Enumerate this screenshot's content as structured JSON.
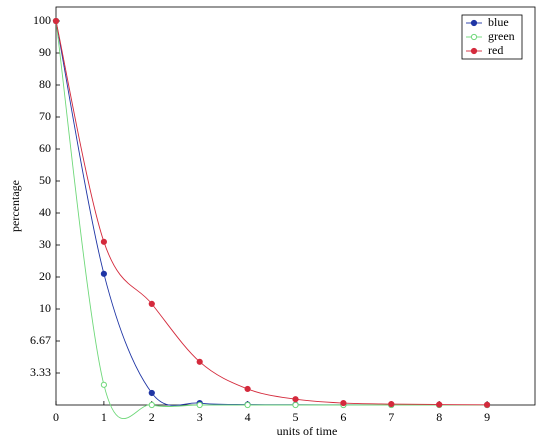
{
  "chart_data": {
    "type": "line",
    "x_label": "units of time",
    "y_label": "percentage",
    "x": [
      0,
      1,
      2,
      3,
      4,
      5,
      6,
      7,
      8,
      9
    ],
    "xlim": [
      0,
      10
    ],
    "xticks": [
      0,
      1,
      2,
      3,
      4,
      5,
      6,
      7,
      8,
      9
    ],
    "ylim": [
      0,
      104
    ],
    "yticks": [
      3.33,
      6.67,
      10,
      20,
      30,
      40,
      50,
      60,
      70,
      80,
      90,
      100
    ],
    "legend": "top-right",
    "series": [
      {
        "name": "blue",
        "color": "#1f35a5",
        "marker": "filled",
        "values": [
          100,
          21,
          1.25,
          0.2,
          0.05,
          0.03,
          0.02,
          0.01,
          0.01,
          0
        ]
      },
      {
        "name": "green",
        "color": "#6fd87a",
        "marker": "open",
        "values": [
          100,
          2.1,
          0,
          0,
          0,
          0,
          0,
          0,
          0,
          0
        ]
      },
      {
        "name": "red",
        "color": "#d42a3c",
        "marker": "filled",
        "values": [
          100,
          31,
          11.6,
          4.5,
          1.67,
          0.6,
          0.2,
          0.1,
          0.05,
          0.02
        ]
      }
    ]
  }
}
